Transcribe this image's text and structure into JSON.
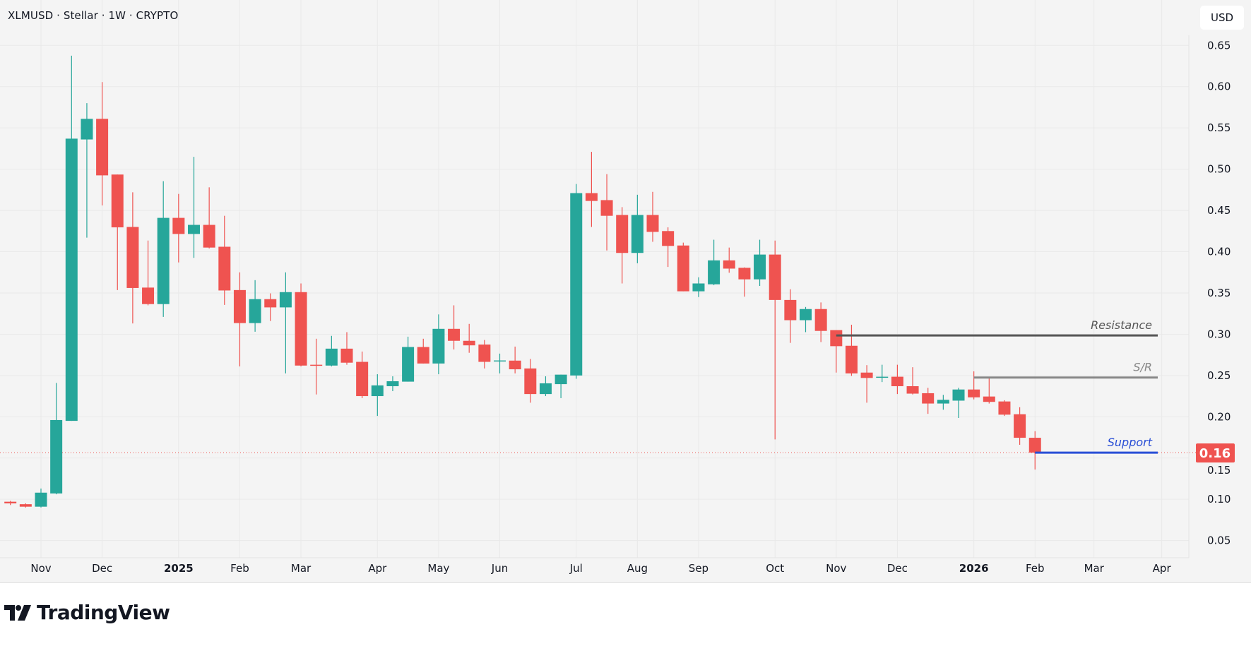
{
  "header": {
    "title": "XLMUSD · Stellar · 1W · CRYPTO",
    "currency_button": "USD"
  },
  "branding": {
    "logo_text": "TradingView"
  },
  "colors": {
    "up": "#26a69a",
    "down": "#ef5350",
    "resistance": "#555555",
    "sr": "#888888",
    "support": "#2a4fd6",
    "last_price": "#ef5350"
  },
  "chart_data": {
    "type": "candlestick",
    "symbol": "XLMUSD",
    "interval": "1W",
    "ylim": [
      0.03,
      0.68
    ],
    "y_ticks": [
      "0.65",
      "0.60",
      "0.55",
      "0.50",
      "0.45",
      "0.40",
      "0.35",
      "0.30",
      "0.25",
      "0.20",
      "0.15",
      "0.10",
      "0.05"
    ],
    "x_ticks": [
      {
        "label": "Nov",
        "date": "2024-11-04"
      },
      {
        "label": "Dec",
        "date": "2024-12-02"
      },
      {
        "label": "2025",
        "date": "2025-01-06",
        "bold": true
      },
      {
        "label": "Feb",
        "date": "2025-02-03"
      },
      {
        "label": "Mar",
        "date": "2025-03-03"
      },
      {
        "label": "Apr",
        "date": "2025-04-07"
      },
      {
        "label": "May",
        "date": "2025-05-05"
      },
      {
        "label": "Jun",
        "date": "2025-06-02"
      },
      {
        "label": "Jul",
        "date": "2025-07-07"
      },
      {
        "label": "Aug",
        "date": "2025-08-04"
      },
      {
        "label": "Sep",
        "date": "2025-09-01"
      },
      {
        "label": "Oct",
        "date": "2025-10-06"
      },
      {
        "label": "Nov",
        "date": "2025-11-03"
      },
      {
        "label": "Dec",
        "date": "2025-12-01"
      },
      {
        "label": "2026",
        "date": "2026-01-05",
        "bold": true
      },
      {
        "label": "Feb",
        "date": "2026-02-02"
      },
      {
        "label": "Mar",
        "date": "2026-03-01"
      },
      {
        "label": "Apr",
        "date": "2026-04-01"
      }
    ],
    "columns": [
      "date",
      "open",
      "high",
      "low",
      "close"
    ],
    "candles": [
      [
        "2024-10-21",
        0.097,
        0.098,
        0.093,
        0.095
      ],
      [
        "2024-10-28",
        0.094,
        0.095,
        0.09,
        0.091
      ],
      [
        "2024-11-04",
        0.091,
        0.113,
        0.09,
        0.108
      ],
      [
        "2024-11-11",
        0.107,
        0.241,
        0.106,
        0.196
      ],
      [
        "2024-11-18",
        0.195,
        0.6375,
        0.195,
        0.537
      ],
      [
        "2024-11-25",
        0.536,
        0.58,
        0.417,
        0.561
      ],
      [
        "2024-12-02",
        0.561,
        0.6055,
        0.456,
        0.4925
      ],
      [
        "2024-12-09",
        0.4935,
        0.4935,
        0.3535,
        0.4295
      ],
      [
        "2024-12-16",
        0.43,
        0.472,
        0.313,
        0.356
      ],
      [
        "2024-12-23",
        0.3565,
        0.4135,
        0.335,
        0.3365
      ],
      [
        "2024-12-30",
        0.3365,
        0.4855,
        0.321,
        0.441
      ],
      [
        "2025-01-06",
        0.441,
        0.47,
        0.387,
        0.4215
      ],
      [
        "2025-01-13",
        0.4215,
        0.515,
        0.3925,
        0.4325
      ],
      [
        "2025-01-20",
        0.4325,
        0.478,
        0.404,
        0.405
      ],
      [
        "2025-01-27",
        0.406,
        0.4435,
        0.3355,
        0.353
      ],
      [
        "2025-02-03",
        0.3535,
        0.375,
        0.261,
        0.3135
      ],
      [
        "2025-02-10",
        0.3135,
        0.3655,
        0.303,
        0.3425
      ],
      [
        "2025-02-17",
        0.3425,
        0.3495,
        0.316,
        0.3325
      ],
      [
        "2025-02-24",
        0.3325,
        0.375,
        0.2525,
        0.351
      ],
      [
        "2025-03-03",
        0.351,
        0.3615,
        0.261,
        0.262
      ],
      [
        "2025-03-10",
        0.263,
        0.2945,
        0.227,
        0.262
      ],
      [
        "2025-03-17",
        0.262,
        0.298,
        0.261,
        0.2825
      ],
      [
        "2025-03-24",
        0.2825,
        0.3025,
        0.263,
        0.2655
      ],
      [
        "2025-03-31",
        0.2665,
        0.279,
        0.2225,
        0.225
      ],
      [
        "2025-04-07",
        0.225,
        0.2515,
        0.201,
        0.238
      ],
      [
        "2025-04-14",
        0.237,
        0.249,
        0.231,
        0.243
      ],
      [
        "2025-04-21",
        0.2425,
        0.297,
        0.2425,
        0.2845
      ],
      [
        "2025-04-28",
        0.2845,
        0.2945,
        0.2645,
        0.2645
      ],
      [
        "2025-05-05",
        0.2645,
        0.324,
        0.2515,
        0.3065
      ],
      [
        "2025-05-12",
        0.3065,
        0.335,
        0.2815,
        0.292
      ],
      [
        "2025-05-19",
        0.292,
        0.3125,
        0.2775,
        0.2865
      ],
      [
        "2025-05-26",
        0.2875,
        0.293,
        0.2585,
        0.2665
      ],
      [
        "2025-06-02",
        0.268,
        0.2765,
        0.2525,
        0.2682
      ],
      [
        "2025-06-09",
        0.268,
        0.285,
        0.2525,
        0.2575
      ],
      [
        "2025-06-16",
        0.2585,
        0.27,
        0.217,
        0.2275
      ],
      [
        "2025-06-23",
        0.2275,
        0.249,
        0.225,
        0.2405
      ],
      [
        "2025-06-30",
        0.2395,
        0.251,
        0.2225,
        0.251
      ],
      [
        "2025-07-07",
        0.25,
        0.482,
        0.246,
        0.471
      ],
      [
        "2025-07-14",
        0.471,
        0.521,
        0.43,
        0.4615
      ],
      [
        "2025-07-21",
        0.4625,
        0.494,
        0.4015,
        0.4435
      ],
      [
        "2025-07-28",
        0.4445,
        0.454,
        0.3615,
        0.3985
      ],
      [
        "2025-08-04",
        0.3985,
        0.469,
        0.386,
        0.4445
      ],
      [
        "2025-08-11",
        0.4445,
        0.4725,
        0.412,
        0.424
      ],
      [
        "2025-08-18",
        0.425,
        0.4295,
        0.3815,
        0.407
      ],
      [
        "2025-08-25",
        0.4075,
        0.411,
        0.352,
        0.352
      ],
      [
        "2025-09-01",
        0.352,
        0.369,
        0.345,
        0.3615
      ],
      [
        "2025-09-08",
        0.3605,
        0.4145,
        0.3595,
        0.3895
      ],
      [
        "2025-09-15",
        0.3895,
        0.405,
        0.3745,
        0.3795
      ],
      [
        "2025-09-22",
        0.3805,
        0.381,
        0.3455,
        0.3665
      ],
      [
        "2025-09-29",
        0.3665,
        0.4145,
        0.3585,
        0.3965
      ],
      [
        "2025-10-06",
        0.3965,
        0.4135,
        0.1725,
        0.3415
      ],
      [
        "2025-10-13",
        0.3415,
        0.3545,
        0.2895,
        0.317
      ],
      [
        "2025-10-20",
        0.317,
        0.333,
        0.3025,
        0.3305
      ],
      [
        "2025-10-27",
        0.3305,
        0.3385,
        0.2905,
        0.304
      ],
      [
        "2025-11-03",
        0.305,
        0.305,
        0.2535,
        0.2855
      ],
      [
        "2025-11-10",
        0.286,
        0.3115,
        0.2495,
        0.2525
      ],
      [
        "2025-11-17",
        0.2535,
        0.2625,
        0.217,
        0.247
      ],
      [
        "2025-11-24",
        0.2475,
        0.263,
        0.242,
        0.2485
      ],
      [
        "2025-12-01",
        0.2485,
        0.263,
        0.2275,
        0.237
      ],
      [
        "2025-12-08",
        0.237,
        0.26,
        0.227,
        0.228
      ],
      [
        "2025-12-15",
        0.2285,
        0.235,
        0.2035,
        0.216
      ],
      [
        "2025-12-22",
        0.216,
        0.2265,
        0.2085,
        0.2205
      ],
      [
        "2025-12-29",
        0.2195,
        0.235,
        0.1985,
        0.233
      ],
      [
        "2026-01-05",
        0.233,
        0.255,
        0.221,
        0.2235
      ],
      [
        "2026-01-12",
        0.2245,
        0.2475,
        0.216,
        0.218
      ],
      [
        "2026-01-19",
        0.2185,
        0.22,
        0.201,
        0.2025
      ],
      [
        "2026-01-26",
        0.203,
        0.2115,
        0.166,
        0.1745
      ],
      [
        "2026-02-02",
        0.1745,
        0.1825,
        0.136,
        0.1565
      ]
    ],
    "levels": [
      {
        "name": "Resistance",
        "price": 0.2985,
        "start": "2025-11-03",
        "style": "resistance"
      },
      {
        "name": "S/R",
        "price": 0.2475,
        "start": "2026-01-05",
        "style": "sr"
      },
      {
        "name": "Support",
        "price": 0.1565,
        "start": "2026-02-02",
        "style": "support"
      }
    ],
    "last_price": {
      "value": 0.1565,
      "label": "0.16"
    },
    "grid": true
  }
}
